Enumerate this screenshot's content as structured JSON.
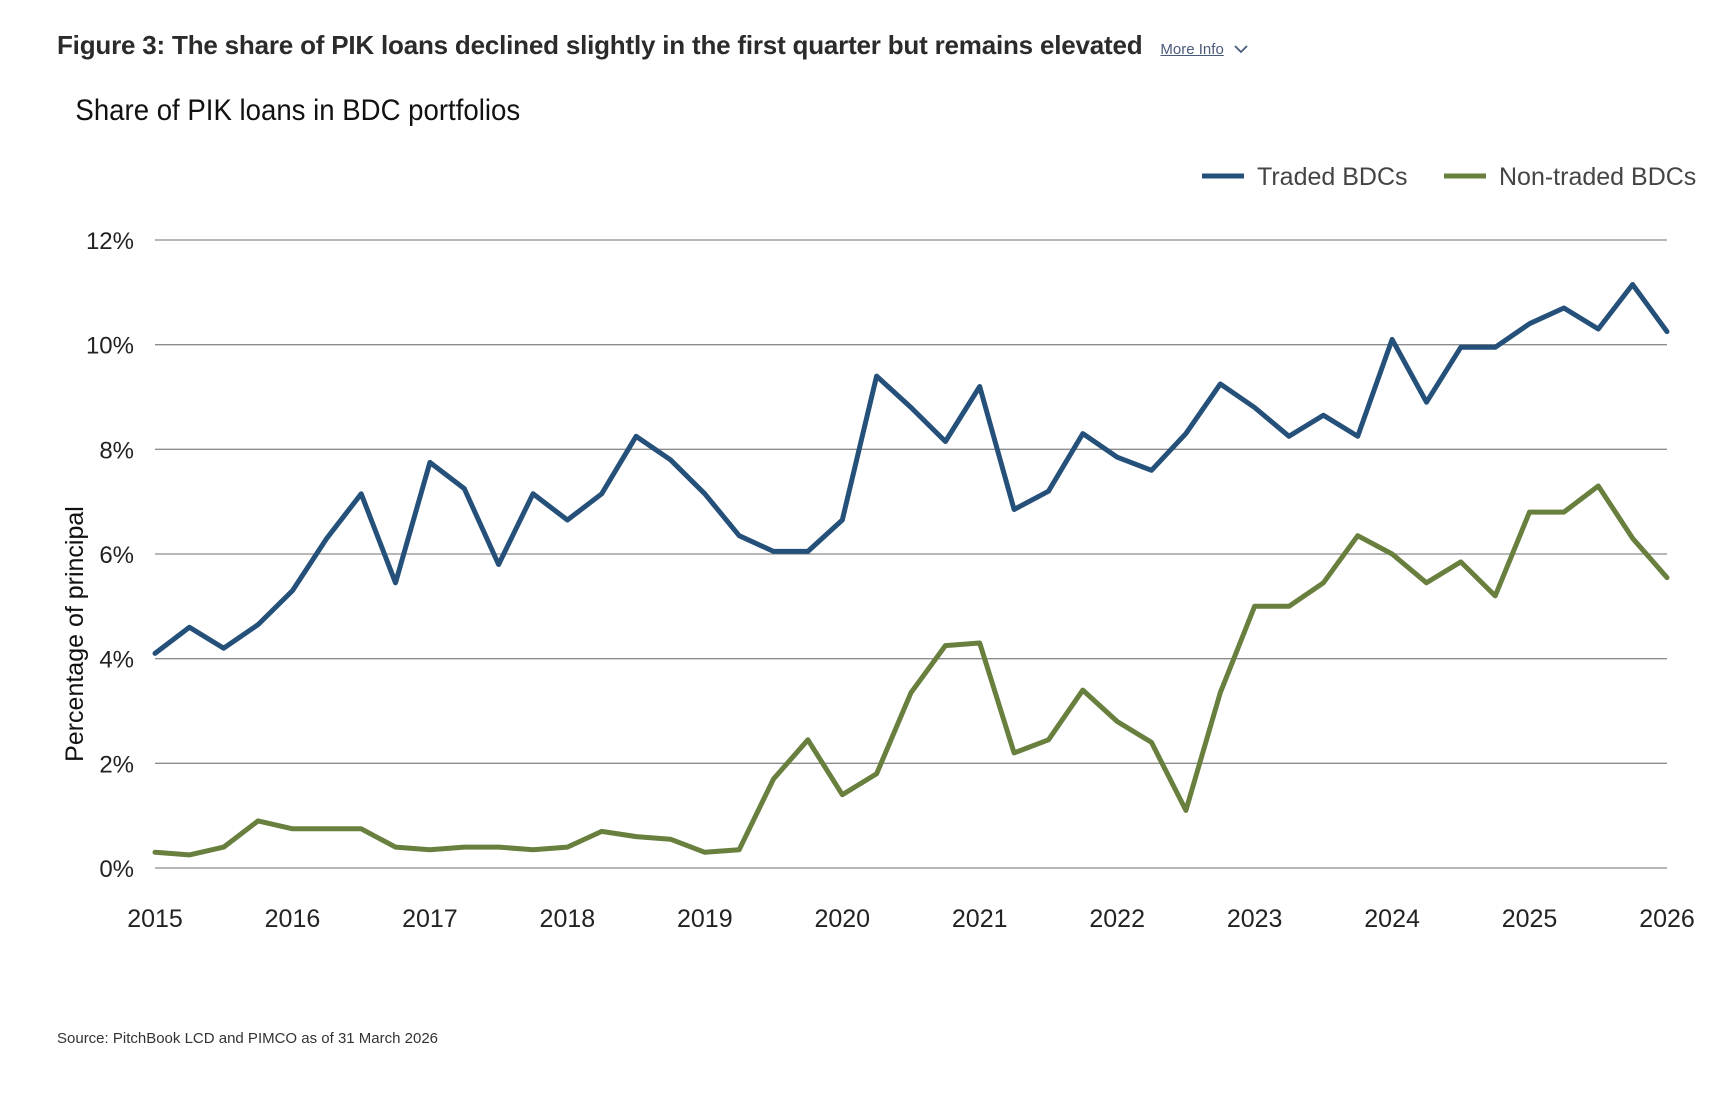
{
  "header": {
    "figure_title": "Figure 3: The share of PIK loans declined slightly in the first quarter but remains elevated",
    "more_info_label": "More Info",
    "more_info_icon": "chevron-down-icon"
  },
  "source_note": "Source: PitchBook LCD and PIMCO as of 31 March 2026",
  "colors": {
    "traded": "#24507a",
    "non_traded": "#687f3e",
    "grid": "#8c8c8c"
  },
  "chart_data": {
    "type": "line",
    "title": "Share of PIK loans in BDC portfolios",
    "ylabel": "Percentage of principal",
    "xlabel": "",
    "ylim": [
      0,
      12
    ],
    "yticks": [
      0,
      2,
      4,
      6,
      8,
      10,
      12
    ],
    "ytick_labels": [
      "0%",
      "2%",
      "4%",
      "6%",
      "8%",
      "10%",
      "12%"
    ],
    "xlim": [
      2015,
      2026
    ],
    "xticks": [
      "2015",
      "2016",
      "2017",
      "2018",
      "2019",
      "2020",
      "2021",
      "2022",
      "2023",
      "2024",
      "2025",
      "2026"
    ],
    "grid": "horizontal",
    "legend_position": "top-right",
    "x": [
      2015.0,
      2015.25,
      2015.5,
      2015.75,
      2016.0,
      2016.25,
      2016.5,
      2016.75,
      2017.0,
      2017.25,
      2017.5,
      2017.75,
      2018.0,
      2018.25,
      2018.5,
      2018.75,
      2019.0,
      2019.25,
      2019.5,
      2019.75,
      2020.0,
      2020.25,
      2020.5,
      2020.75,
      2021.0,
      2021.25,
      2021.5,
      2021.75,
      2022.0,
      2022.25,
      2022.5,
      2022.75,
      2023.0,
      2023.25,
      2023.5,
      2023.75,
      2024.0,
      2024.25,
      2024.5,
      2024.75,
      2025.0,
      2025.25,
      2025.5,
      2025.75,
      2026.0
    ],
    "series": [
      {
        "name": "Traded BDCs",
        "color": "#24507a",
        "values": [
          4.1,
          4.6,
          4.2,
          4.65,
          5.3,
          6.3,
          7.15,
          5.45,
          7.75,
          7.25,
          5.8,
          7.15,
          6.65,
          7.15,
          8.25,
          7.8,
          7.15,
          6.35,
          6.05,
          6.05,
          6.65,
          9.4,
          8.8,
          8.15,
          9.2,
          6.85,
          7.2,
          8.3,
          7.85,
          7.6,
          8.3,
          9.25,
          8.8,
          8.25,
          8.65,
          8.25,
          10.1,
          8.9,
          9.95,
          9.95,
          10.4,
          10.7,
          10.3,
          11.15,
          10.25
        ]
      },
      {
        "name": "Non-traded BDCs",
        "color": "#687f3e",
        "values": [
          0.3,
          0.25,
          0.4,
          0.9,
          0.75,
          0.75,
          0.75,
          0.4,
          0.35,
          0.4,
          0.4,
          0.35,
          0.4,
          0.7,
          0.6,
          0.55,
          0.3,
          0.35,
          1.7,
          2.45,
          1.4,
          1.8,
          3.35,
          4.25,
          4.3,
          2.2,
          2.45,
          3.4,
          2.8,
          2.4,
          1.1,
          3.35,
          5.0,
          5.0,
          5.45,
          6.35,
          6.0,
          5.45,
          5.85,
          5.2,
          6.8,
          6.8,
          7.3,
          6.3,
          5.55
        ]
      }
    ]
  }
}
